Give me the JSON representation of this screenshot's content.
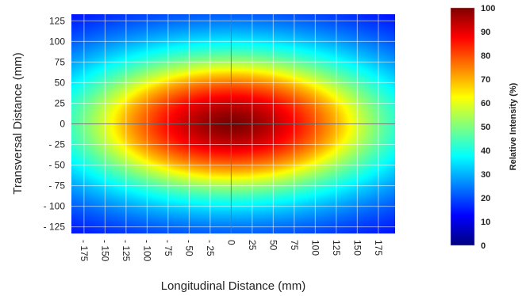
{
  "chart_data": {
    "type": "heatmap",
    "title": "",
    "xlabel": "Longitudinal Distance (mm)",
    "ylabel": "Transversal Distance (mm)",
    "xlim": [
      -190,
      195
    ],
    "ylim": [
      -133,
      133
    ],
    "xticks": [
      {
        "value": -175,
        "label": "- 175"
      },
      {
        "value": -150,
        "label": "- 150"
      },
      {
        "value": -125,
        "label": "- 125"
      },
      {
        "value": -100,
        "label": "- 100"
      },
      {
        "value": -75,
        "label": "- 75"
      },
      {
        "value": -50,
        "label": "- 50"
      },
      {
        "value": -25,
        "label": "- 25"
      },
      {
        "value": 0,
        "label": "0"
      },
      {
        "value": 25,
        "label": "25"
      },
      {
        "value": 50,
        "label": "50"
      },
      {
        "value": 75,
        "label": "75"
      },
      {
        "value": 100,
        "label": "100"
      },
      {
        "value": 125,
        "label": "125"
      },
      {
        "value": 150,
        "label": "150"
      },
      {
        "value": 175,
        "label": "175"
      }
    ],
    "yticks": [
      {
        "value": 125,
        "label": "125"
      },
      {
        "value": 100,
        "label": "100"
      },
      {
        "value": 75,
        "label": "75"
      },
      {
        "value": 50,
        "label": "50"
      },
      {
        "value": 25,
        "label": "25"
      },
      {
        "value": 0,
        "label": "0"
      },
      {
        "value": -25,
        "label": "- 25"
      },
      {
        "value": -50,
        "label": "- 50"
      },
      {
        "value": -75,
        "label": "- 75"
      },
      {
        "value": -100,
        "label": "- 100"
      },
      {
        "value": -125,
        "label": "- 125"
      }
    ],
    "grid": true,
    "intensity_field": {
      "center": [
        0,
        0
      ],
      "plateau_half_width": [
        130,
        60
      ],
      "peak_intensity": 100,
      "plateau_edge_intensity": 68,
      "corner_intensity": 15
    },
    "colorbar": {
      "label": "Relative Intensity (%)",
      "range": [
        0,
        100
      ],
      "ticks": [
        0,
        10,
        20,
        30,
        40,
        50,
        60,
        70,
        80,
        90,
        100
      ],
      "colormap": [
        "#00007f",
        "#0000ff",
        "#007fff",
        "#00ffff",
        "#7fff7f",
        "#ffff00",
        "#ff7f00",
        "#ff0000",
        "#7f0000"
      ]
    }
  }
}
